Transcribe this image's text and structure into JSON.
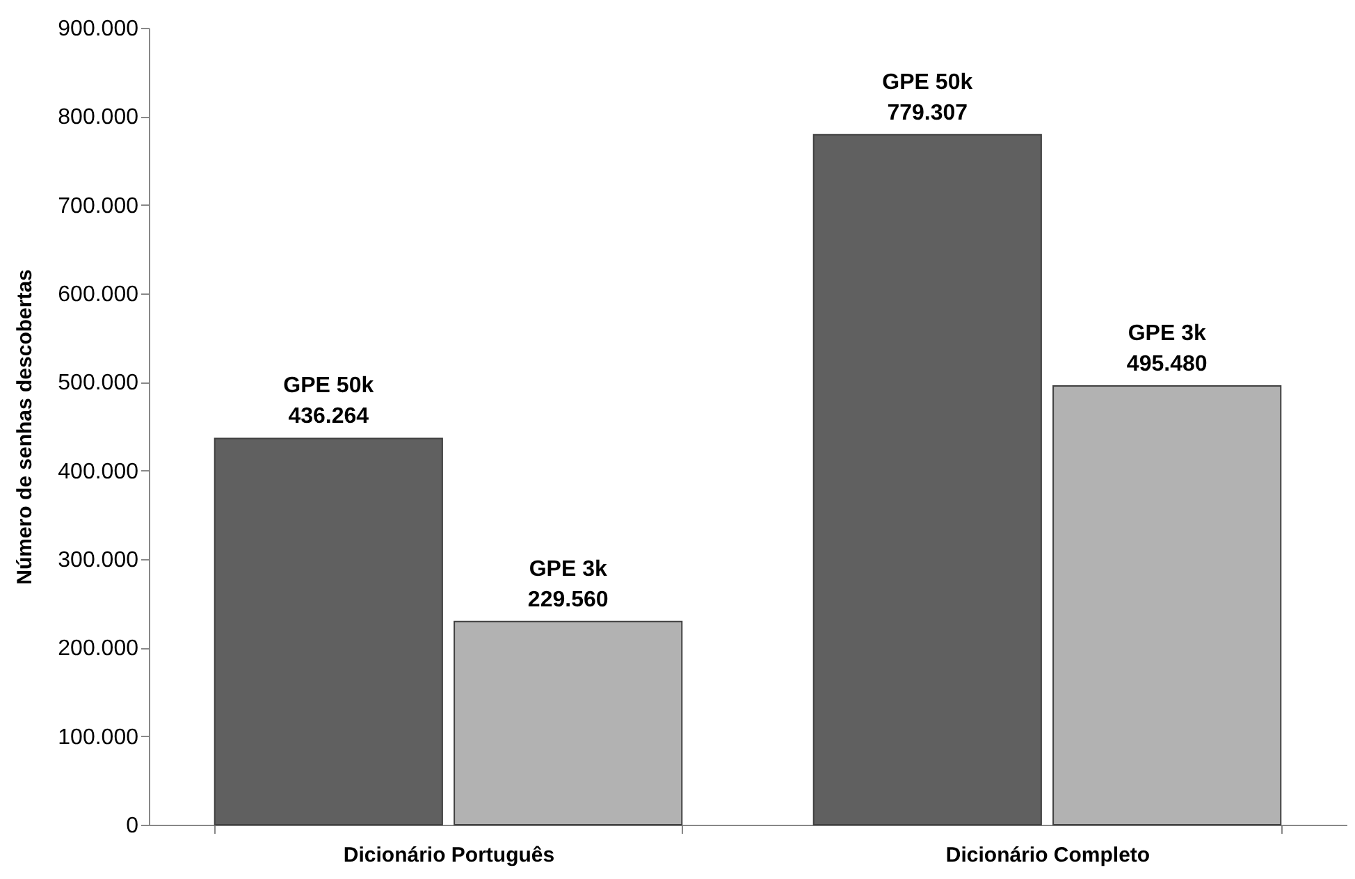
{
  "chart_data": {
    "type": "bar",
    "ylabel": "Número de senhas descobertas",
    "categories": [
      "Dicionário Português",
      "Dicionário Completo"
    ],
    "series": [
      {
        "name": "GPE 50k",
        "color": "#606060",
        "values": [
          436264,
          779307
        ],
        "value_labels": [
          "436.264",
          "779.307"
        ]
      },
      {
        "name": "GPE 3k",
        "color": "#b2b2b2",
        "values": [
          229560,
          495480
        ],
        "value_labels": [
          "229.560",
          "495.480"
        ]
      }
    ],
    "ylim": [
      0,
      900000
    ],
    "yticks": [
      0,
      {
        "value": 100000,
        "label": "100.000"
      },
      {
        "value": 200000,
        "label": "200.000"
      },
      {
        "value": 300000,
        "label": "300.000"
      },
      {
        "value": 400000,
        "label": "400.000"
      },
      {
        "value": 500000,
        "label": "500.000"
      },
      {
        "value": 600000,
        "label": "600.000"
      },
      {
        "value": 700000,
        "label": "700.000"
      },
      {
        "value": 800000,
        "label": "800.000"
      },
      {
        "value": 900000,
        "label": "900.000"
      }
    ],
    "grid": false,
    "legend": false
  }
}
